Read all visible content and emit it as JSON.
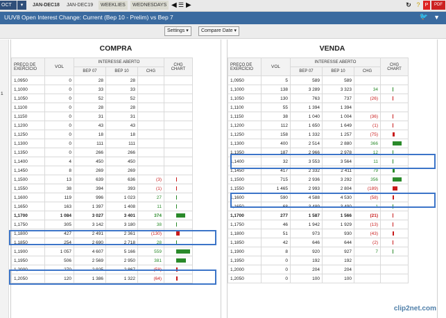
{
  "tabs": {
    "selected": "OCT",
    "items": [
      {
        "label": "JAN-DEC18",
        "active": true,
        "grey": false
      },
      {
        "label": "JAN-DEC19",
        "active": false,
        "grey": false
      },
      {
        "label": "WEEKLIES",
        "active": false,
        "grey": true
      },
      {
        "label": "WEDNESDAYS",
        "active": false,
        "grey": true
      }
    ]
  },
  "title": "UUV8 Open Interest Change: Current (Bep 10 - Prelim) vs Bep 7",
  "controls": {
    "settings": "Settings",
    "compare": "Compare Date"
  },
  "left_edge_value": "1",
  "compra": {
    "title": "COMPRA",
    "headers": {
      "strike": "PREÇO DE EXERCÍCIO",
      "vol": "VOL",
      "oi": "INTERESSE ABERTO",
      "bep07": "BEP 07",
      "bep10": "BEP 10",
      "chg": "CHG",
      "chart": "CHG CHART"
    },
    "rows": [
      {
        "strike": "1,0950",
        "vol": "0",
        "b7": "28",
        "b10": "28",
        "chg": "",
        "sign": 0,
        "bar": 0
      },
      {
        "strike": "1,1000",
        "vol": "0",
        "b7": "33",
        "b10": "33",
        "chg": "",
        "sign": 0,
        "bar": 0
      },
      {
        "strike": "1,1050",
        "vol": "0",
        "b7": "52",
        "b10": "52",
        "chg": "",
        "sign": 0,
        "bar": 0
      },
      {
        "strike": "1,1100",
        "vol": "0",
        "b7": "28",
        "b10": "28",
        "chg": "",
        "sign": 0,
        "bar": 0
      },
      {
        "strike": "1,1150",
        "vol": "0",
        "b7": "31",
        "b10": "31",
        "chg": "",
        "sign": 0,
        "bar": 0
      },
      {
        "strike": "1,1200",
        "vol": "0",
        "b7": "43",
        "b10": "43",
        "chg": "",
        "sign": 0,
        "bar": 0
      },
      {
        "strike": "1,1250",
        "vol": "0",
        "b7": "18",
        "b10": "18",
        "chg": "",
        "sign": 0,
        "bar": 0
      },
      {
        "strike": "1,1300",
        "vol": "0",
        "b7": "111",
        "b10": "111",
        "chg": "",
        "sign": 0,
        "bar": 0
      },
      {
        "strike": "1,1350",
        "vol": "0",
        "b7": "266",
        "b10": "266",
        "chg": "",
        "sign": 0,
        "bar": 0
      },
      {
        "strike": "1,1400",
        "vol": "4",
        "b7": "450",
        "b10": "450",
        "chg": "",
        "sign": 0,
        "bar": 0
      },
      {
        "strike": "1,1450",
        "vol": "8",
        "b7": "269",
        "b10": "269",
        "chg": "",
        "sign": 0,
        "bar": 0
      },
      {
        "strike": "1,1500",
        "vol": "13",
        "b7": "639",
        "b10": "636",
        "chg": "(3)",
        "sign": -1,
        "bar": 3
      },
      {
        "strike": "1,1550",
        "vol": "38",
        "b7": "394",
        "b10": "393",
        "chg": "(1)",
        "sign": -1,
        "bar": 1
      },
      {
        "strike": "1,1600",
        "vol": "119",
        "b7": "996",
        "b10": "1 023",
        "chg": "27",
        "sign": 1,
        "bar": 27
      },
      {
        "strike": "1,1650",
        "vol": "163",
        "b7": "1 397",
        "b10": "1 408",
        "chg": "11",
        "sign": 1,
        "bar": 11
      },
      {
        "strike": "1,1700",
        "vol": "1 084",
        "b7": "3 027",
        "b10": "3 401",
        "chg": "374",
        "sign": 1,
        "bar": 374,
        "hl": true
      },
      {
        "strike": "1,1750",
        "vol": "305",
        "b7": "3 142",
        "b10": "3 180",
        "chg": "38",
        "sign": 1,
        "bar": 38
      },
      {
        "strike": "1,1800",
        "vol": "427",
        "b7": "2 491",
        "b10": "2 361",
        "chg": "(130)",
        "sign": -1,
        "bar": 130
      },
      {
        "strike": "1,1850",
        "vol": "254",
        "b7": "2 690",
        "b10": "2 718",
        "chg": "28",
        "sign": 1,
        "bar": 28
      },
      {
        "strike": "1,1900",
        "vol": "1 057",
        "b7": "4 607",
        "b10": "5 166",
        "chg": "559",
        "sign": 1,
        "bar": 559
      },
      {
        "strike": "1,1950",
        "vol": "506",
        "b7": "2 569",
        "b10": "2 950",
        "chg": "381",
        "sign": 1,
        "bar": 381
      },
      {
        "strike": "1,2000",
        "vol": "270",
        "b7": "2 925",
        "b10": "2 867",
        "chg": "(58)",
        "sign": -1,
        "bar": 58
      },
      {
        "strike": "1,2050",
        "vol": "120",
        "b7": "1 386",
        "b10": "1 322",
        "chg": "(64)",
        "sign": -1,
        "bar": 64
      }
    ]
  },
  "venda": {
    "title": "VENDA",
    "headers": {
      "strike": "PREÇO DE EXERCÍCIO",
      "vol": "VOL",
      "oi": "INTERESSE ABERTO",
      "bep07": "BEP 07",
      "bep10": "BEP 10",
      "chg": "CHG",
      "chart": "CHG CHART"
    },
    "rows": [
      {
        "strike": "1,0950",
        "vol": "5",
        "b7": "589",
        "b10": "589",
        "chg": "",
        "sign": 0,
        "bar": 0
      },
      {
        "strike": "1,1000",
        "vol": "138",
        "b7": "3 289",
        "b10": "3 323",
        "chg": "34",
        "sign": 1,
        "bar": 34
      },
      {
        "strike": "1,1050",
        "vol": "130",
        "b7": "763",
        "b10": "737",
        "chg": "(26)",
        "sign": -1,
        "bar": 26
      },
      {
        "strike": "1,1100",
        "vol": "55",
        "b7": "1 394",
        "b10": "1 394",
        "chg": "",
        "sign": 0,
        "bar": 0
      },
      {
        "strike": "1,1150",
        "vol": "38",
        "b7": "1 040",
        "b10": "1 004",
        "chg": "(36)",
        "sign": -1,
        "bar": 36
      },
      {
        "strike": "1,1200",
        "vol": "112",
        "b7": "1 650",
        "b10": "1 649",
        "chg": "(1)",
        "sign": -1,
        "bar": 1
      },
      {
        "strike": "1,1250",
        "vol": "158",
        "b7": "1 332",
        "b10": "1 257",
        "chg": "(75)",
        "sign": -1,
        "bar": 75
      },
      {
        "strike": "1,1300",
        "vol": "400",
        "b7": "2 514",
        "b10": "2 880",
        "chg": "366",
        "sign": 1,
        "bar": 366
      },
      {
        "strike": "1,1350",
        "vol": "187",
        "b7": "2 966",
        "b10": "2 978",
        "chg": "12",
        "sign": 1,
        "bar": 12
      },
      {
        "strike": "1,1400",
        "vol": "32",
        "b7": "3 553",
        "b10": "3 564",
        "chg": "11",
        "sign": 1,
        "bar": 11
      },
      {
        "strike": "1,1450",
        "vol": "417",
        "b7": "2 332",
        "b10": "2 411",
        "chg": "79",
        "sign": 1,
        "bar": 79
      },
      {
        "strike": "1,1500",
        "vol": "715",
        "b7": "2 936",
        "b10": "3 292",
        "chg": "356",
        "sign": 1,
        "bar": 356
      },
      {
        "strike": "1,1550",
        "vol": "1 465",
        "b7": "2 993",
        "b10": "2 804",
        "chg": "(189)",
        "sign": -1,
        "bar": 189
      },
      {
        "strike": "1,1600",
        "vol": "590",
        "b7": "4 588",
        "b10": "4 530",
        "chg": "(58)",
        "sign": -1,
        "bar": 58
      },
      {
        "strike": "1,1650",
        "vol": "68",
        "b7": "3 489",
        "b10": "3 490",
        "chg": "1",
        "sign": 1,
        "bar": 1
      },
      {
        "strike": "1,1700",
        "vol": "277",
        "b7": "1 587",
        "b10": "1 566",
        "chg": "(21)",
        "sign": -1,
        "bar": 21,
        "hl": true
      },
      {
        "strike": "1,1750",
        "vol": "46",
        "b7": "1 942",
        "b10": "1 929",
        "chg": "(13)",
        "sign": -1,
        "bar": 13
      },
      {
        "strike": "1,1800",
        "vol": "51",
        "b7": "973",
        "b10": "930",
        "chg": "(43)",
        "sign": -1,
        "bar": 43
      },
      {
        "strike": "1,1850",
        "vol": "42",
        "b7": "646",
        "b10": "644",
        "chg": "(2)",
        "sign": -1,
        "bar": 2
      },
      {
        "strike": "1,1900",
        "vol": "8",
        "b7": "920",
        "b10": "927",
        "chg": "7",
        "sign": 1,
        "bar": 7
      },
      {
        "strike": "1,1950",
        "vol": "0",
        "b7": "192",
        "b10": "192",
        "chg": "",
        "sign": 0,
        "bar": 0
      },
      {
        "strike": "1,2000",
        "vol": "0",
        "b7": "204",
        "b10": "204",
        "chg": "",
        "sign": 0,
        "bar": 0
      },
      {
        "strike": "1,2050",
        "vol": "0",
        "b7": "100",
        "b10": "100",
        "chg": "",
        "sign": 0,
        "bar": 0
      }
    ]
  },
  "colors": {
    "positive": "#2a8a2a",
    "negative": "#c81a1a",
    "highlight_box": "#3b74c8",
    "titlebar": "#3a6a9f"
  },
  "watermark": "clip2net.com"
}
